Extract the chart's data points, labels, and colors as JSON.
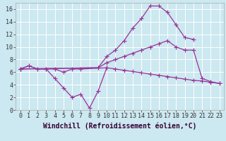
{
  "background_color": "#cce8f0",
  "grid_color": "#ffffff",
  "line_color": "#993399",
  "marker": "+",
  "markersize": 4,
  "linewidth": 0.9,
  "xlabel": "Windchill (Refroidissement éolien,°C)",
  "xlim": [
    -0.5,
    23.5
  ],
  "ylim": [
    0,
    17
  ],
  "xticks": [
    0,
    1,
    2,
    3,
    4,
    5,
    6,
    7,
    8,
    9,
    10,
    11,
    12,
    13,
    14,
    15,
    16,
    17,
    18,
    19,
    20,
    21,
    22,
    23
  ],
  "yticks": [
    0,
    2,
    4,
    6,
    8,
    10,
    12,
    14,
    16
  ],
  "l1x": [
    0,
    1,
    2,
    3,
    4,
    5,
    6,
    7,
    10,
    11,
    12,
    13,
    14,
    15,
    16,
    17,
    18,
    19,
    20,
    21,
    22,
    23
  ],
  "l1y": [
    6.5,
    7.0,
    6.5,
    6.5,
    6.5,
    6.0,
    6.5,
    6.5,
    6.7,
    6.5,
    6.3,
    6.1,
    5.9,
    5.7,
    5.5,
    5.3,
    5.1,
    4.9,
    4.7,
    4.6,
    4.4,
    4.2
  ],
  "l2x": [
    0,
    1,
    2,
    3,
    4,
    5,
    6,
    7,
    8,
    9,
    10
  ],
  "l2y": [
    6.5,
    7.0,
    6.5,
    6.5,
    5.0,
    3.5,
    2.0,
    2.5,
    0.3,
    3.0,
    6.7
  ],
  "l3x": [
    0,
    9,
    10,
    11,
    12,
    13,
    14,
    15,
    16,
    17,
    18,
    19,
    20
  ],
  "l3y": [
    6.5,
    6.7,
    8.5,
    9.5,
    11.0,
    13.0,
    14.5,
    16.5,
    16.5,
    15.5,
    13.5,
    11.5,
    11.2
  ],
  "l4x": [
    0,
    9,
    10,
    11,
    12,
    13,
    14,
    15,
    16,
    17,
    18,
    19,
    20,
    21,
    22,
    23
  ],
  "l4y": [
    6.5,
    6.7,
    7.5,
    8.0,
    8.5,
    9.0,
    9.5,
    10.0,
    10.5,
    11.0,
    10.0,
    9.5,
    9.5,
    5.0,
    4.5,
    4.2
  ],
  "tick_fontsize": 6,
  "xlabel_fontsize": 7
}
